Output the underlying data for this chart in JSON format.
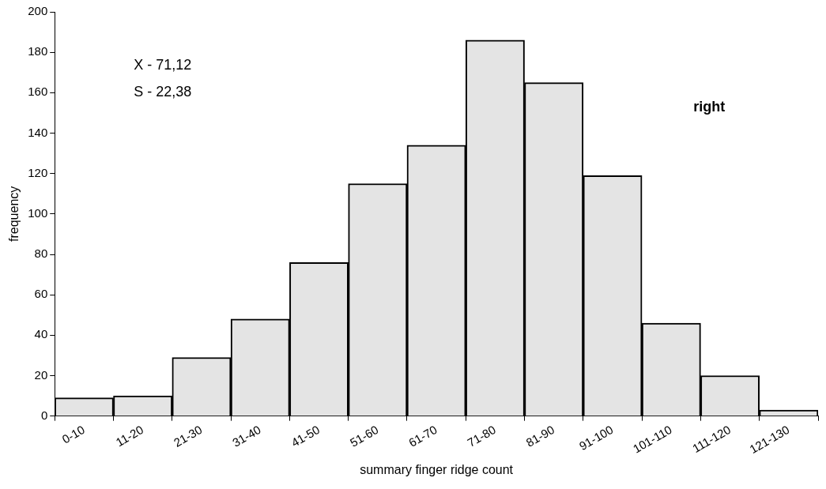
{
  "chart_data": {
    "type": "bar",
    "categories": [
      "0-10",
      "11-20",
      "21-30",
      "31-40",
      "41-50",
      "51-60",
      "61-70",
      "71-80",
      "81-90",
      "91-100",
      "101-110",
      "111-120",
      "121-130"
    ],
    "values": [
      9,
      10,
      29,
      48,
      76,
      115,
      134,
      186,
      165,
      119,
      46,
      20,
      3
    ],
    "color": "#e4e4e4",
    "xlabel": "summary finger ridge count",
    "ylabel": "frequency",
    "ylim": [
      0,
      200
    ],
    "yticks": [
      0,
      20,
      40,
      60,
      80,
      100,
      120,
      140,
      160,
      180,
      200
    ],
    "annotations": [
      "X - 71,12",
      "S - 22,38",
      "right"
    ],
    "grid": false,
    "legend": false
  }
}
